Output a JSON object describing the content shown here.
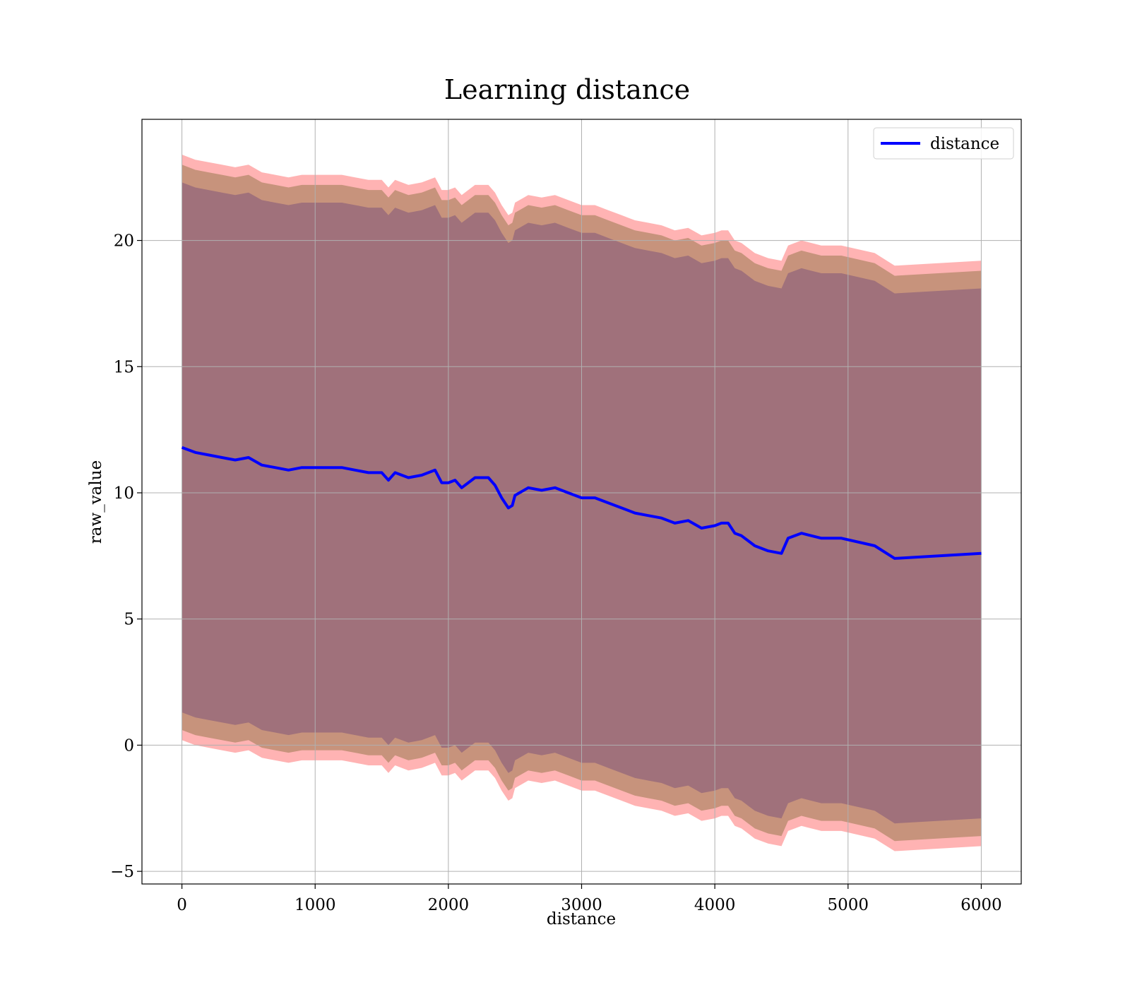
{
  "chart_data": {
    "type": "line",
    "title": "Learning distance",
    "xlabel": "distance",
    "ylabel": "raw_value",
    "xlim": [
      -300,
      6300
    ],
    "ylim": [
      -5.5,
      24.8
    ],
    "xticks": [
      0,
      1000,
      2000,
      3000,
      4000,
      5000,
      6000
    ],
    "xtick_labels": [
      "0",
      "1000",
      "2000",
      "3000",
      "4000",
      "5000",
      "6000"
    ],
    "yticks": [
      -5,
      0,
      5,
      10,
      15,
      20
    ],
    "ytick_labels": [
      "−5",
      "0",
      "5",
      "10",
      "15",
      "20"
    ],
    "grid": true,
    "legend": {
      "placement": "top-right",
      "entries": [
        "distance"
      ]
    },
    "colors": {
      "line": "#0000ff",
      "band_outer": "#ff9a9a",
      "band_middle": "#c7937c",
      "band_inner": "#a0717b"
    },
    "x": [
      0,
      100,
      200,
      300,
      400,
      500,
      600,
      700,
      800,
      900,
      1000,
      1100,
      1200,
      1300,
      1400,
      1500,
      1550,
      1600,
      1700,
      1800,
      1900,
      1950,
      2000,
      2050,
      2100,
      2200,
      2300,
      2350,
      2400,
      2450,
      2480,
      2500,
      2600,
      2700,
      2800,
      2900,
      3000,
      3100,
      3200,
      3300,
      3400,
      3500,
      3600,
      3700,
      3800,
      3900,
      4000,
      4050,
      4100,
      4150,
      4200,
      4250,
      4300,
      4400,
      4500,
      4550,
      4600,
      4650,
      4800,
      4950,
      5200,
      5350,
      6000
    ],
    "series": [
      {
        "name": "distance",
        "values": [
          11.8,
          11.6,
          11.5,
          11.4,
          11.3,
          11.4,
          11.1,
          11.0,
          10.9,
          11.0,
          11.0,
          11.0,
          11.0,
          10.9,
          10.8,
          10.8,
          10.5,
          10.8,
          10.6,
          10.7,
          10.9,
          10.4,
          10.4,
          10.5,
          10.2,
          10.6,
          10.6,
          10.3,
          9.8,
          9.4,
          9.5,
          9.9,
          10.2,
          10.1,
          10.2,
          10.0,
          9.8,
          9.8,
          9.6,
          9.4,
          9.2,
          9.1,
          9.0,
          8.8,
          8.9,
          8.6,
          8.7,
          8.8,
          8.8,
          8.4,
          8.3,
          8.1,
          7.9,
          7.7,
          7.6,
          8.2,
          8.3,
          8.4,
          8.2,
          8.2,
          7.9,
          7.4,
          7.6
        ]
      }
    ],
    "bands": [
      {
        "lower": [
          0.6,
          0.4,
          0.3,
          0.2,
          0.1,
          0.2,
          -0.1,
          -0.2,
          -0.3,
          -0.2,
          -0.2,
          -0.2,
          -0.2,
          -0.3,
          -0.4,
          -0.4,
          -0.7,
          -0.4,
          -0.6,
          -0.5,
          -0.3,
          -0.8,
          -0.8,
          -0.7,
          -1.0,
          -0.6,
          -0.6,
          -0.9,
          -1.4,
          -1.8,
          -1.7,
          -1.3,
          -1.0,
          -1.1,
          -1.0,
          -1.2,
          -1.4,
          -1.4,
          -1.6,
          -1.8,
          -2.0,
          -2.1,
          -2.2,
          -2.4,
          -2.3,
          -2.6,
          -2.5,
          -2.4,
          -2.4,
          -2.8,
          -2.9,
          -3.1,
          -3.3,
          -3.5,
          -3.6,
          -3.0,
          -2.9,
          -2.8,
          -3.0,
          -3.0,
          -3.3,
          -3.8,
          -3.6
        ],
        "upper": [
          23.0,
          22.8,
          22.7,
          22.6,
          22.5,
          22.6,
          22.3,
          22.2,
          22.1,
          22.2,
          22.2,
          22.2,
          22.2,
          22.1,
          22.0,
          22.0,
          21.7,
          22.0,
          21.8,
          21.9,
          22.1,
          21.6,
          21.6,
          21.7,
          21.4,
          21.8,
          21.8,
          21.5,
          21.0,
          20.6,
          20.7,
          21.1,
          21.4,
          21.3,
          21.4,
          21.2,
          21.0,
          21.0,
          20.8,
          20.6,
          20.4,
          20.3,
          20.2,
          20.0,
          20.1,
          19.8,
          19.9,
          20.0,
          20.0,
          19.6,
          19.5,
          19.3,
          19.1,
          18.9,
          18.8,
          19.4,
          19.5,
          19.6,
          19.4,
          19.4,
          19.1,
          18.6,
          18.8
        ]
      },
      {
        "lower": [
          1.3,
          1.1,
          1.0,
          0.9,
          0.8,
          0.9,
          0.6,
          0.5,
          0.4,
          0.5,
          0.5,
          0.5,
          0.5,
          0.4,
          0.3,
          0.3,
          0.0,
          0.3,
          0.1,
          0.2,
          0.4,
          -0.1,
          -0.1,
          0.0,
          -0.3,
          0.1,
          0.1,
          -0.2,
          -0.7,
          -1.1,
          -1.0,
          -0.6,
          -0.3,
          -0.4,
          -0.3,
          -0.5,
          -0.7,
          -0.7,
          -0.9,
          -1.1,
          -1.3,
          -1.4,
          -1.5,
          -1.7,
          -1.6,
          -1.9,
          -1.8,
          -1.7,
          -1.7,
          -2.1,
          -2.2,
          -2.4,
          -2.6,
          -2.8,
          -2.9,
          -2.3,
          -2.2,
          -2.1,
          -2.3,
          -2.3,
          -2.6,
          -3.1,
          -2.9
        ],
        "upper": [
          22.3,
          22.1,
          22.0,
          21.9,
          21.8,
          21.9,
          21.6,
          21.5,
          21.4,
          21.5,
          21.5,
          21.5,
          21.5,
          21.4,
          21.3,
          21.3,
          21.0,
          21.3,
          21.1,
          21.2,
          21.4,
          20.9,
          20.9,
          21.0,
          20.7,
          21.1,
          21.1,
          20.8,
          20.3,
          19.9,
          20.0,
          20.4,
          20.7,
          20.6,
          20.7,
          20.5,
          20.3,
          20.3,
          20.1,
          19.9,
          19.7,
          19.6,
          19.5,
          19.3,
          19.4,
          19.1,
          19.2,
          19.3,
          19.3,
          18.9,
          18.8,
          18.6,
          18.4,
          18.2,
          18.1,
          18.7,
          18.8,
          18.9,
          18.7,
          18.7,
          18.4,
          17.9,
          18.1
        ]
      },
      {
        "lower": [
          0.2,
          0.0,
          -0.1,
          -0.2,
          -0.3,
          -0.2,
          -0.5,
          -0.6,
          -0.7,
          -0.6,
          -0.6,
          -0.6,
          -0.6,
          -0.7,
          -0.8,
          -0.8,
          -1.1,
          -0.8,
          -1.0,
          -0.9,
          -0.7,
          -1.2,
          -1.2,
          -1.1,
          -1.4,
          -1.0,
          -1.0,
          -1.3,
          -1.8,
          -2.2,
          -2.1,
          -1.7,
          -1.4,
          -1.5,
          -1.4,
          -1.6,
          -1.8,
          -1.8,
          -2.0,
          -2.2,
          -2.4,
          -2.5,
          -2.6,
          -2.8,
          -2.7,
          -3.0,
          -2.9,
          -2.8,
          -2.8,
          -3.2,
          -3.3,
          -3.5,
          -3.7,
          -3.9,
          -4.0,
          -3.4,
          -3.3,
          -3.2,
          -3.4,
          -3.4,
          -3.7,
          -4.2,
          -4.0
        ],
        "upper": [
          23.4,
          23.2,
          23.1,
          23.0,
          22.9,
          23.0,
          22.7,
          22.6,
          22.5,
          22.6,
          22.6,
          22.6,
          22.6,
          22.5,
          22.4,
          22.4,
          22.1,
          22.4,
          22.2,
          22.3,
          22.5,
          22.0,
          22.0,
          22.1,
          21.8,
          22.2,
          22.2,
          21.9,
          21.4,
          21.0,
          21.1,
          21.5,
          21.8,
          21.7,
          21.8,
          21.6,
          21.4,
          21.4,
          21.2,
          21.0,
          20.8,
          20.7,
          20.6,
          20.4,
          20.5,
          20.2,
          20.3,
          20.4,
          20.4,
          20.0,
          19.9,
          19.7,
          19.5,
          19.3,
          19.2,
          19.8,
          19.9,
          20.0,
          19.8,
          19.8,
          19.5,
          19.0,
          19.2
        ]
      }
    ]
  }
}
